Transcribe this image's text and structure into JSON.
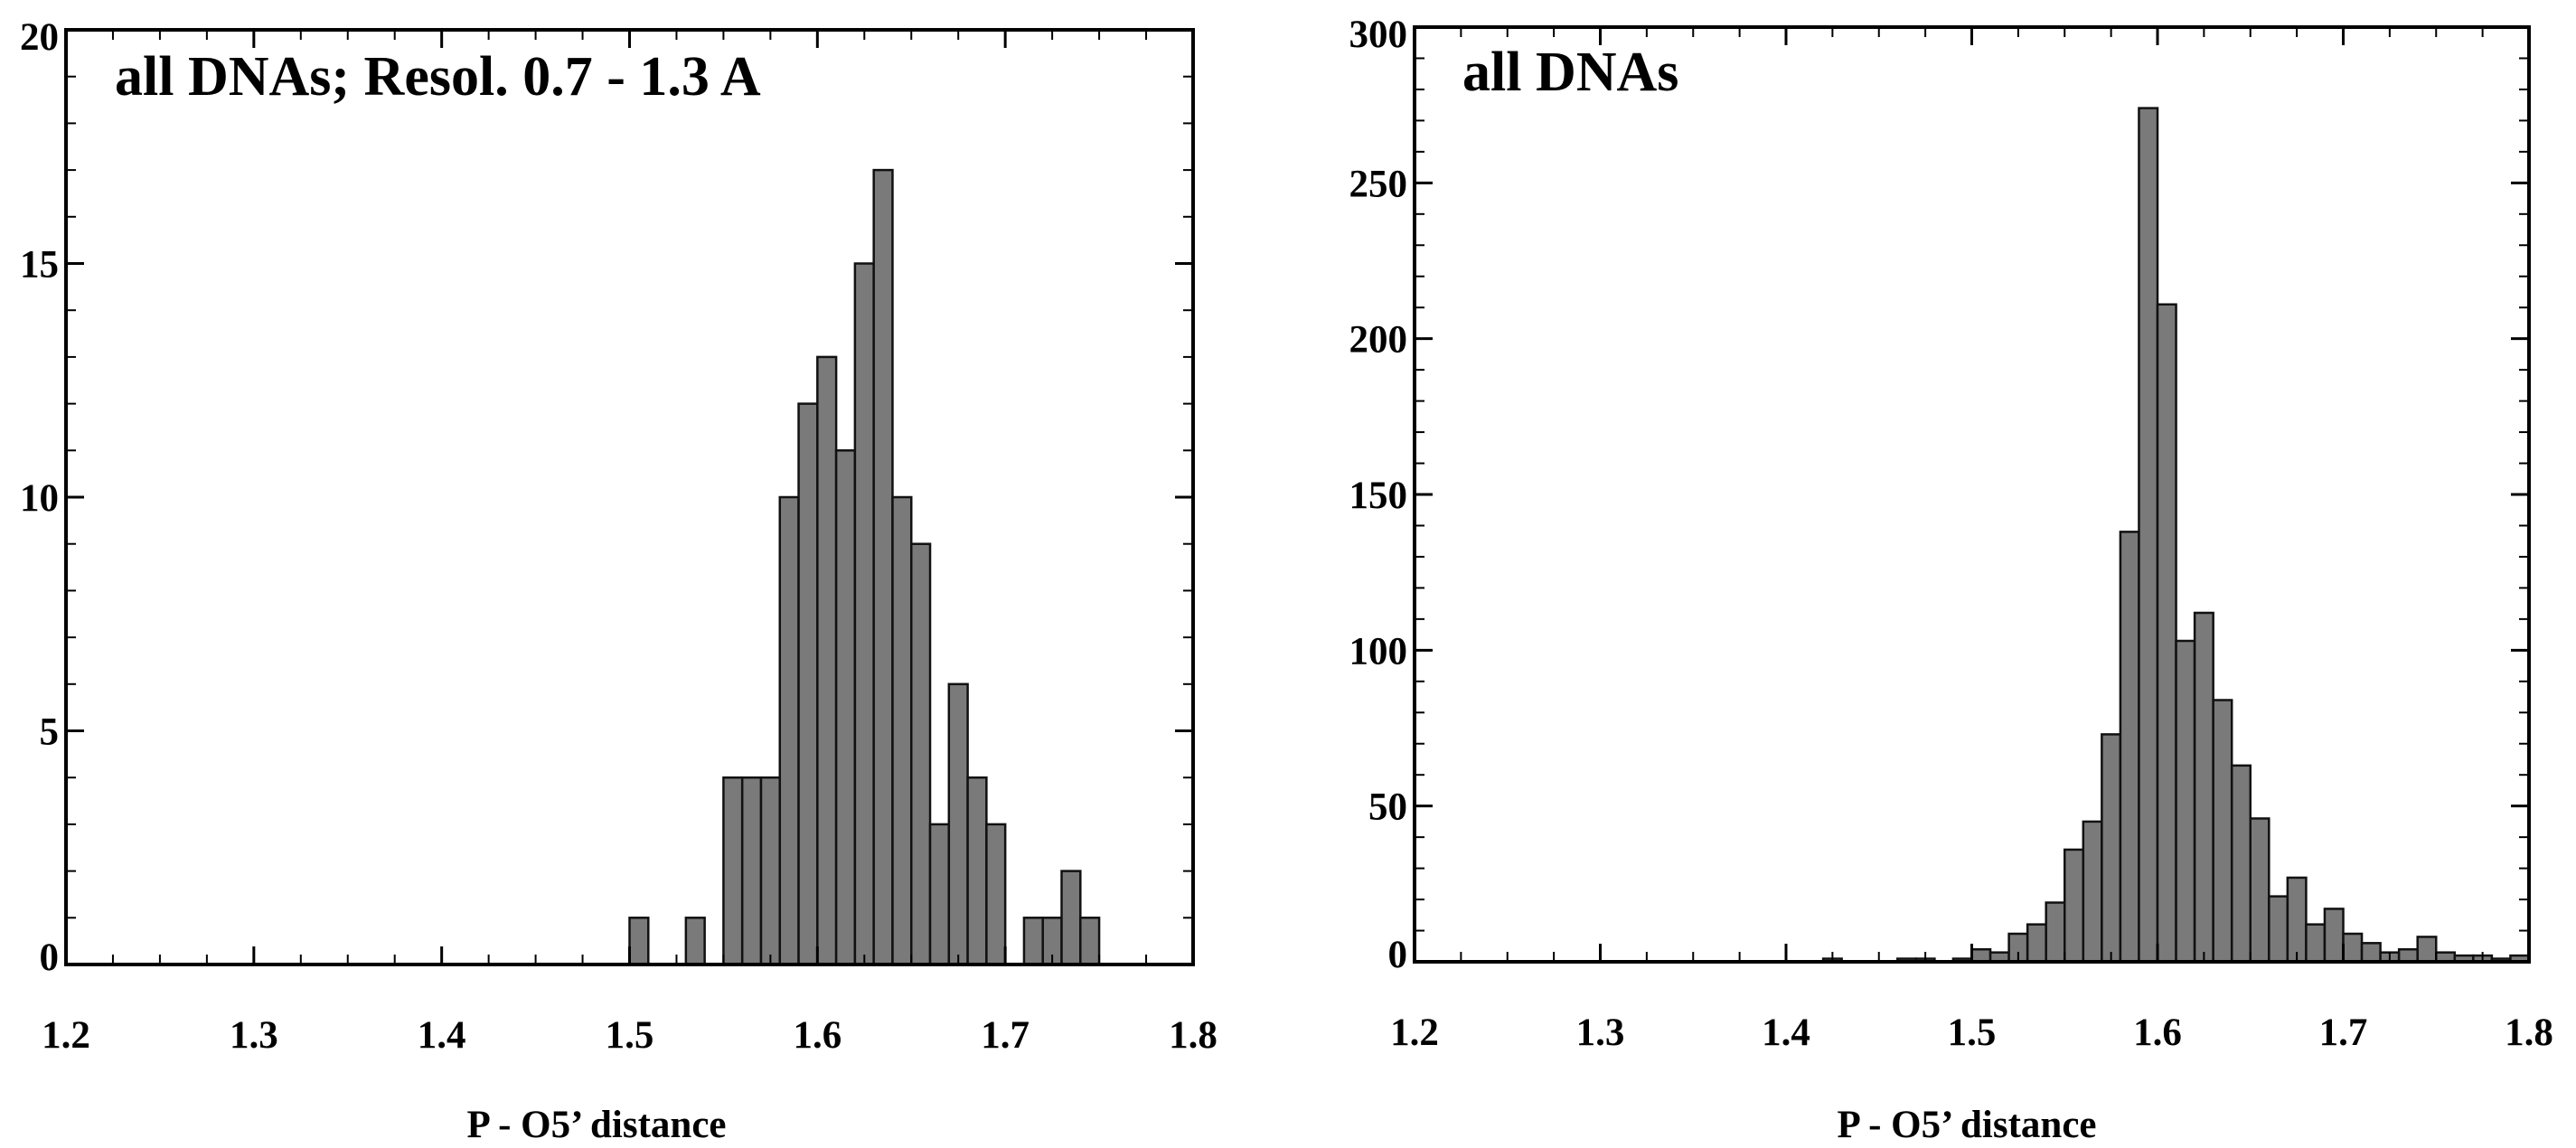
{
  "chart_data": [
    {
      "type": "bar",
      "title": "all DNAs; Resol. 0.7 - 1.3 A",
      "xlabel": "P - O5’ distance",
      "ylabel": "",
      "xlim": [
        1.2,
        1.8
      ],
      "ylim": [
        0,
        20
      ],
      "bin_width": 0.01,
      "xticks": [
        "1.2",
        "1.3",
        "1.4",
        "1.5",
        "1.6",
        "1.7",
        "1.8"
      ],
      "yticks": [
        "0",
        "5",
        "10",
        "15",
        "20"
      ],
      "bins": [
        {
          "x": 1.5,
          "y": 1
        },
        {
          "x": 1.53,
          "y": 1
        },
        {
          "x": 1.55,
          "y": 4
        },
        {
          "x": 1.56,
          "y": 4
        },
        {
          "x": 1.57,
          "y": 4
        },
        {
          "x": 1.58,
          "y": 10
        },
        {
          "x": 1.59,
          "y": 12
        },
        {
          "x": 1.6,
          "y": 13
        },
        {
          "x": 1.61,
          "y": 11
        },
        {
          "x": 1.62,
          "y": 15
        },
        {
          "x": 1.63,
          "y": 17
        },
        {
          "x": 1.64,
          "y": 10
        },
        {
          "x": 1.65,
          "y": 9
        },
        {
          "x": 1.66,
          "y": 3
        },
        {
          "x": 1.67,
          "y": 6
        },
        {
          "x": 1.68,
          "y": 4
        },
        {
          "x": 1.69,
          "y": 3
        },
        {
          "x": 1.71,
          "y": 1
        },
        {
          "x": 1.72,
          "y": 1
        },
        {
          "x": 1.73,
          "y": 2
        },
        {
          "x": 1.74,
          "y": 1
        }
      ]
    },
    {
      "type": "bar",
      "title": "all DNAs",
      "xlabel": "P - O5’ distance",
      "ylabel": "",
      "xlim": [
        1.2,
        1.8
      ],
      "ylim": [
        0,
        300
      ],
      "bin_width": 0.01,
      "xticks": [
        "1.2",
        "1.3",
        "1.4",
        "1.5",
        "1.6",
        "1.7",
        "1.8"
      ],
      "yticks": [
        "0",
        "50",
        "100",
        "150",
        "200",
        "250",
        "300"
      ],
      "bins": [
        {
          "x": 1.42,
          "y": 1
        },
        {
          "x": 1.46,
          "y": 1
        },
        {
          "x": 1.47,
          "y": 1
        },
        {
          "x": 1.49,
          "y": 1
        },
        {
          "x": 1.5,
          "y": 4
        },
        {
          "x": 1.51,
          "y": 3
        },
        {
          "x": 1.52,
          "y": 9
        },
        {
          "x": 1.53,
          "y": 12
        },
        {
          "x": 1.54,
          "y": 19
        },
        {
          "x": 1.55,
          "y": 36
        },
        {
          "x": 1.56,
          "y": 45
        },
        {
          "x": 1.57,
          "y": 73
        },
        {
          "x": 1.58,
          "y": 138
        },
        {
          "x": 1.59,
          "y": 274
        },
        {
          "x": 1.6,
          "y": 211
        },
        {
          "x": 1.61,
          "y": 103
        },
        {
          "x": 1.62,
          "y": 112
        },
        {
          "x": 1.63,
          "y": 84
        },
        {
          "x": 1.64,
          "y": 63
        },
        {
          "x": 1.65,
          "y": 46
        },
        {
          "x": 1.66,
          "y": 21
        },
        {
          "x": 1.67,
          "y": 27
        },
        {
          "x": 1.68,
          "y": 12
        },
        {
          "x": 1.69,
          "y": 17
        },
        {
          "x": 1.7,
          "y": 9
        },
        {
          "x": 1.71,
          "y": 6
        },
        {
          "x": 1.72,
          "y": 3
        },
        {
          "x": 1.73,
          "y": 4
        },
        {
          "x": 1.74,
          "y": 8
        },
        {
          "x": 1.75,
          "y": 3
        },
        {
          "x": 1.76,
          "y": 2
        },
        {
          "x": 1.77,
          "y": 2
        },
        {
          "x": 1.78,
          "y": 1
        },
        {
          "x": 1.79,
          "y": 2
        }
      ]
    }
  ]
}
